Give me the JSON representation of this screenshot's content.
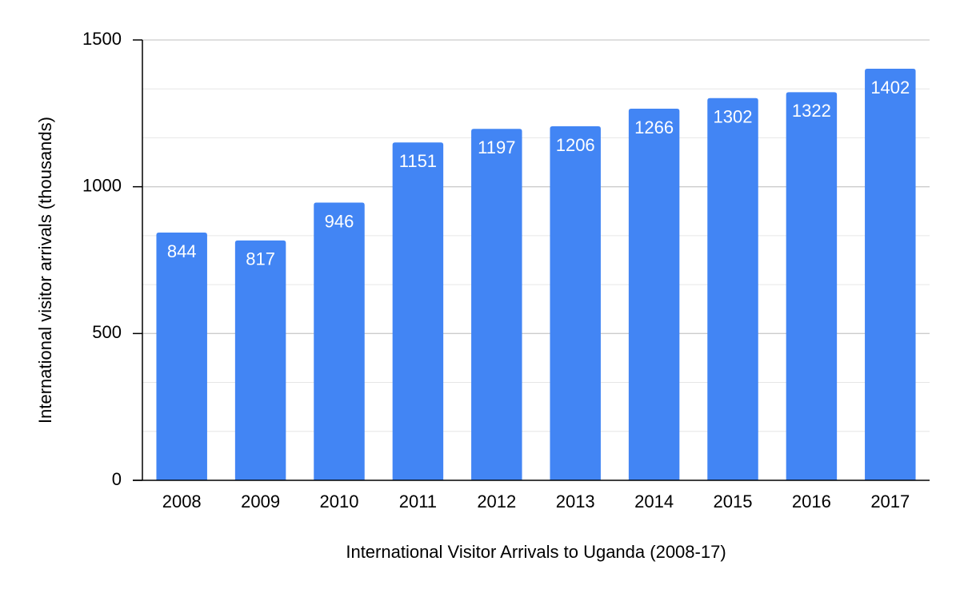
{
  "chart_data": {
    "type": "bar",
    "title": "",
    "xlabel": "International Visitor Arrivals to Uganda (2008-17)",
    "ylabel": "International visitor arrivals (thousands)",
    "categories": [
      "2008",
      "2009",
      "2010",
      "2011",
      "2012",
      "2013",
      "2014",
      "2015",
      "2016",
      "2017"
    ],
    "series": [
      {
        "values": [
          844,
          817,
          946,
          1151,
          1197,
          1206,
          1266,
          1302,
          1322,
          1402
        ],
        "color": "#4285f4"
      }
    ],
    "ylim": [
      0,
      1500
    ],
    "yticks": [
      0,
      500,
      1000,
      1500
    ],
    "minor_gridline_step": 166.67,
    "grid": true,
    "legend": "none",
    "data_labels": "inside-top",
    "colors": {
      "bar": "#4285f4",
      "gridline": "#cccccc",
      "axis": "#000000",
      "label_text": "#ffffff"
    }
  }
}
